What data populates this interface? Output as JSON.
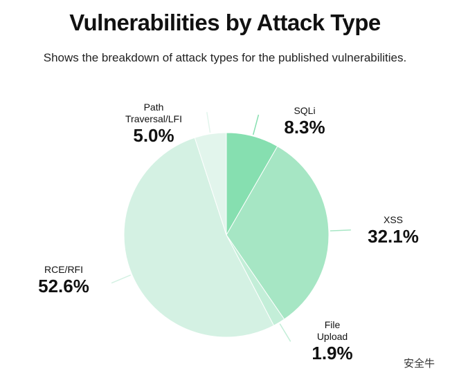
{
  "chart_data": {
    "type": "pie",
    "title": "Vulnerabilities by Attack Type",
    "subtitle": "Shows the breakdown of attack types for the published vulnerabilities.",
    "categories": [
      "SQLi",
      "XSS",
      "File Upload",
      "RCE/RFI",
      "Path Traversal/LFI"
    ],
    "values": [
      8.3,
      32.1,
      1.9,
      52.6,
      5.0
    ],
    "value_labels": [
      "8.3%",
      "32.1%",
      "1.9%",
      "52.6%",
      "5.0%"
    ],
    "colors": [
      "#86dfb0",
      "#a6e6c4",
      "#c3eed8",
      "#d4f1e3",
      "#e2f5ec"
    ]
  },
  "watermark": "安全牛"
}
